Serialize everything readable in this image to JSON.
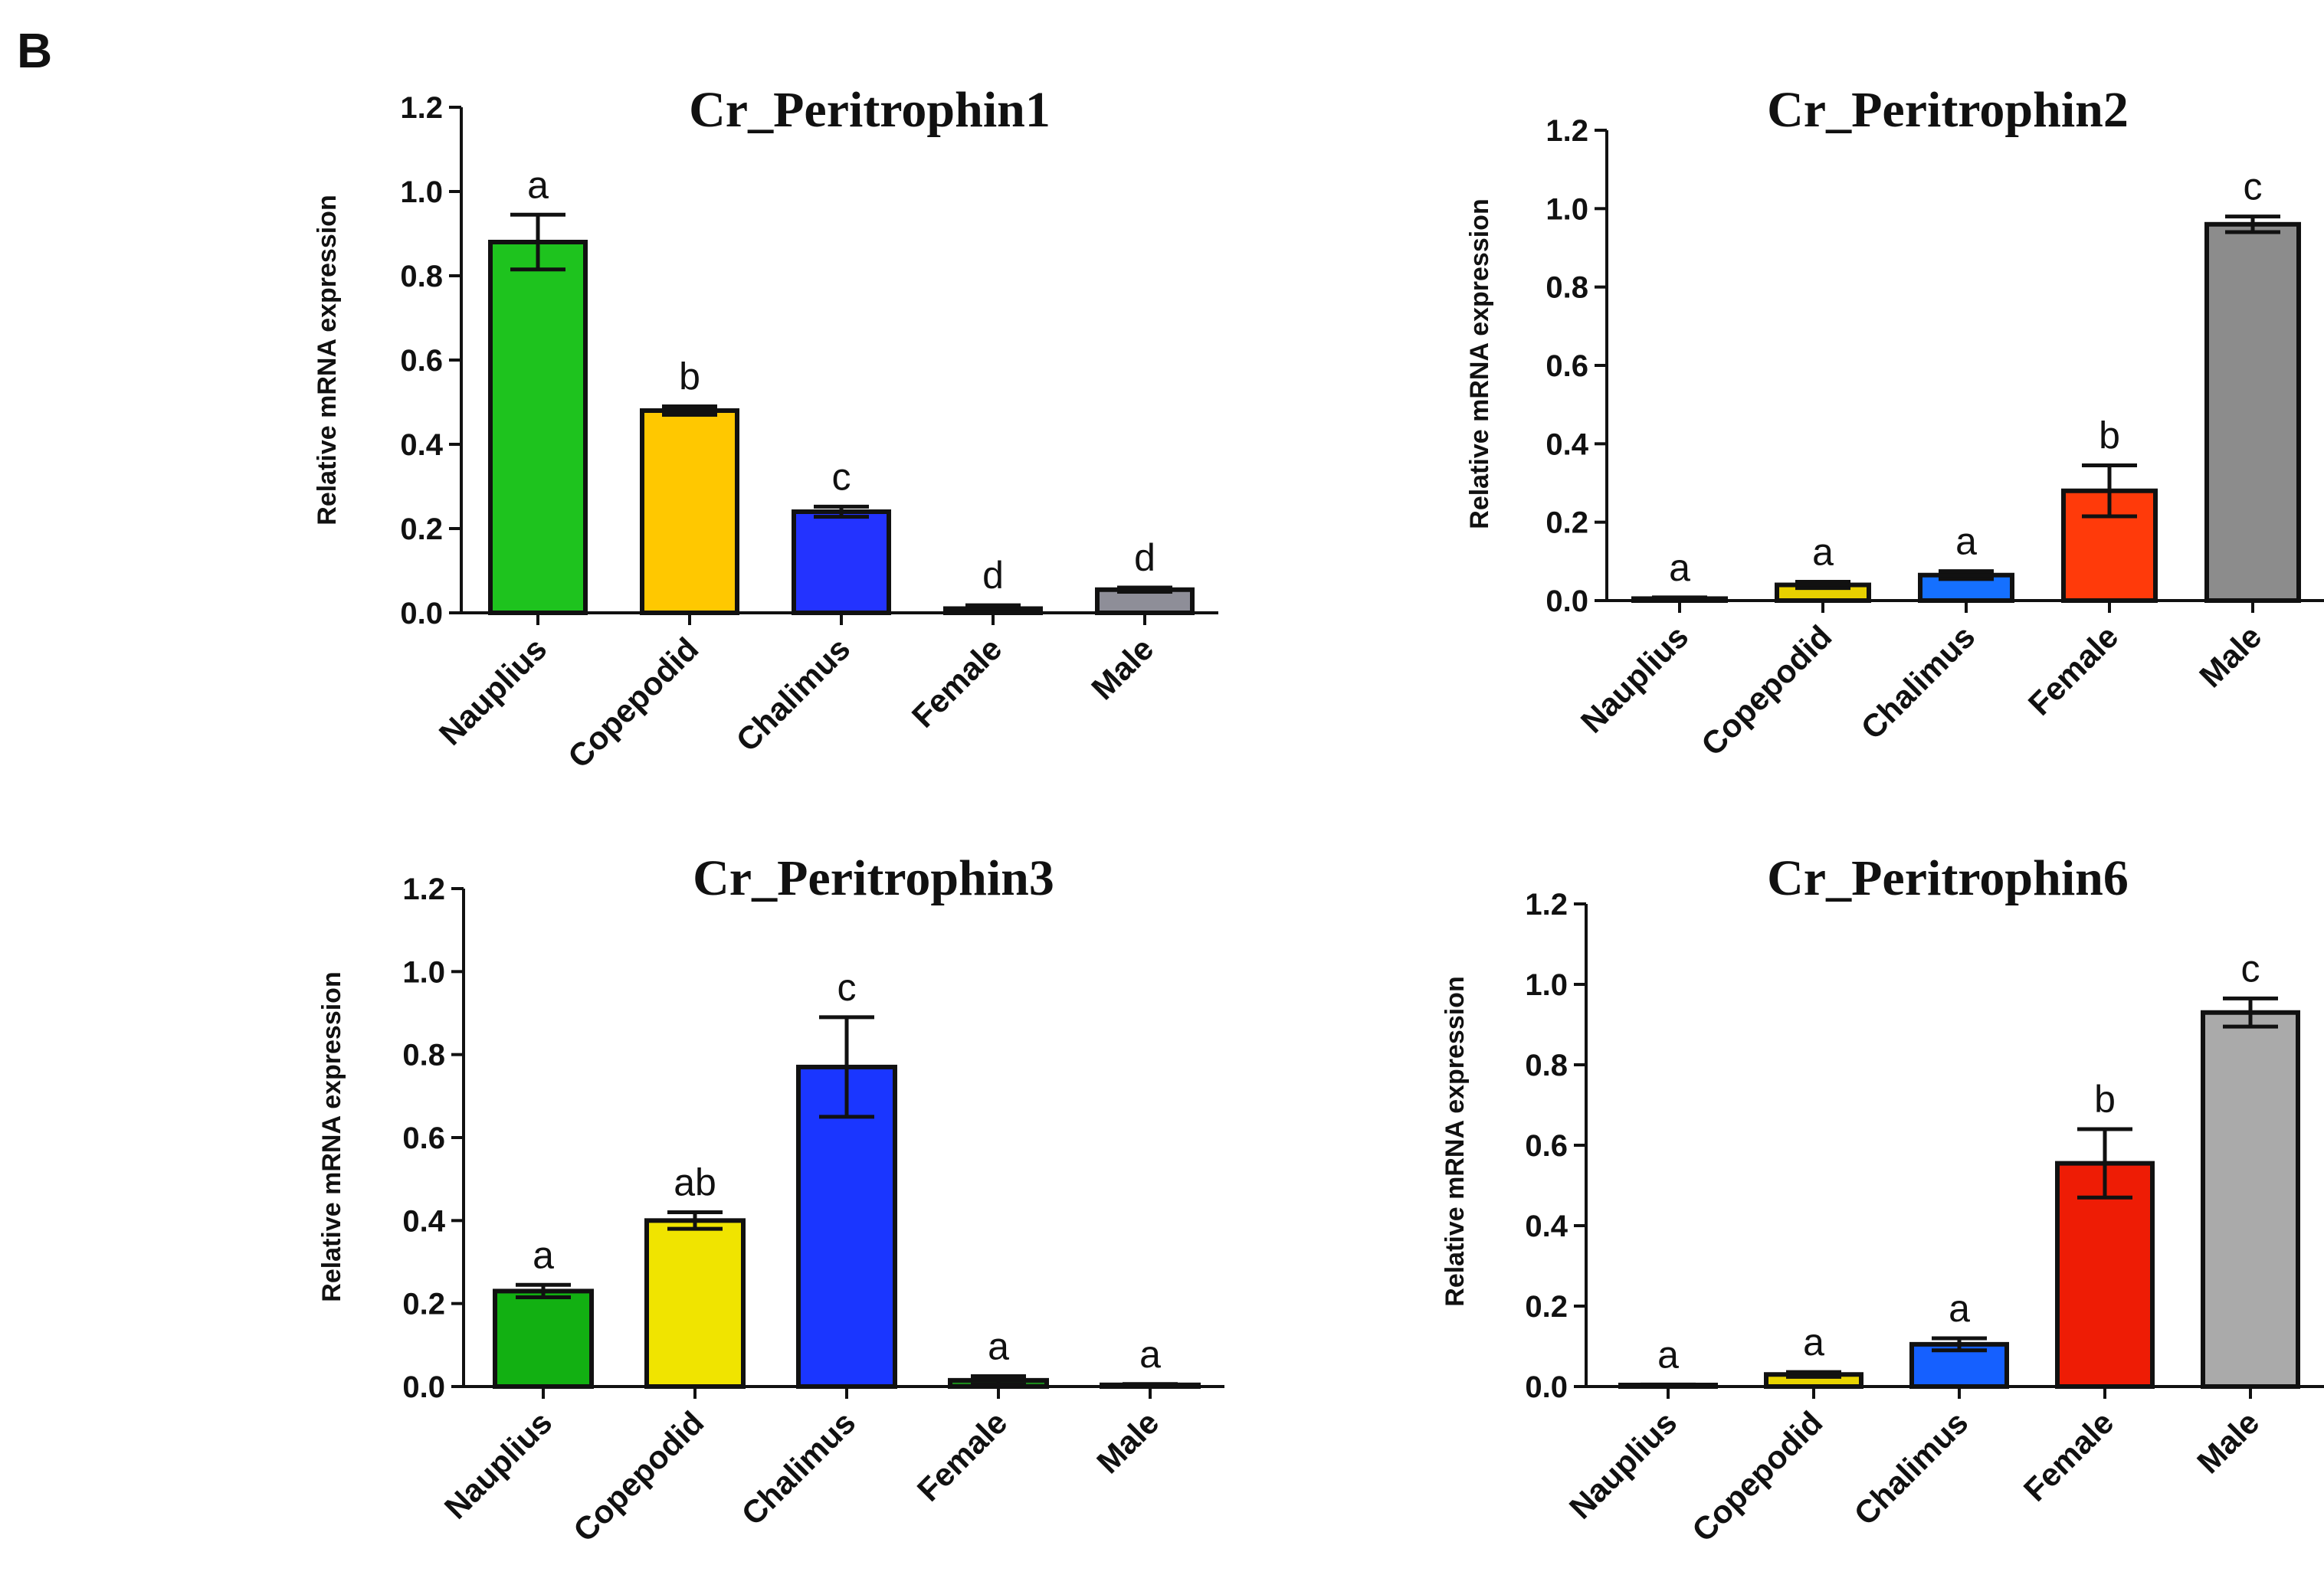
{
  "panel_label": "B",
  "chart_data": [
    {
      "type": "bar",
      "title": "Cr_Peritrophin1",
      "ylabel": "Relative mRNA expression",
      "xlabel": "",
      "ylim": [
        0,
        1.2
      ],
      "yticks": [
        "0.0",
        "0.2",
        "0.4",
        "0.6",
        "0.8",
        "1.0",
        "1.2"
      ],
      "categories": [
        "Nauplius",
        "Copepodid",
        "Chalimus",
        "Female",
        "Male"
      ],
      "values": [
        0.88,
        0.48,
        0.24,
        0.01,
        0.055
      ],
      "errors": [
        0.065,
        0.01,
        0.012,
        0.008,
        0.005
      ],
      "significance": [
        "a",
        "b",
        "c",
        "d",
        "d"
      ],
      "colors": [
        "#1ec31e",
        "#ffc800",
        "#2333ff",
        "#2b2b2b",
        "#8e8e98"
      ]
    },
    {
      "type": "bar",
      "title": "Cr_Peritrophin2",
      "ylabel": "Relative mRNA expression",
      "xlabel": "",
      "ylim": [
        0,
        1.2
      ],
      "yticks": [
        "0.0",
        "0.2",
        "0.4",
        "0.6",
        "0.8",
        "1.0",
        "1.2"
      ],
      "categories": [
        "Nauplius",
        "Copepodid",
        "Chalimus",
        "Female",
        "Male"
      ],
      "values": [
        0.005,
        0.04,
        0.065,
        0.28,
        0.96
      ],
      "errors": [
        0.003,
        0.008,
        0.01,
        0.065,
        0.02
      ],
      "significance": [
        "a",
        "a",
        "a",
        "b",
        "c"
      ],
      "colors": [
        "#1a1a1a",
        "#e8d000",
        "#1570ff",
        "#ff3a0a",
        "#8c8c8c"
      ]
    },
    {
      "type": "bar",
      "title": "Cr_Peritrophin3",
      "ylabel": "Relative mRNA expression",
      "xlabel": "",
      "ylim": [
        0,
        1.2
      ],
      "yticks": [
        "0.0",
        "0.2",
        "0.4",
        "0.6",
        "0.8",
        "1.0",
        "1.2"
      ],
      "categories": [
        "Nauplius",
        "Copepodid",
        "Chalimus",
        "Female",
        "Male"
      ],
      "values": [
        0.23,
        0.4,
        0.77,
        0.015,
        0.004
      ],
      "errors": [
        0.015,
        0.02,
        0.12,
        0.01,
        0.002
      ],
      "significance": [
        "a",
        "ab",
        "c",
        "a",
        "a"
      ],
      "colors": [
        "#12b012",
        "#f0e400",
        "#1a36ff",
        "#1c8a1c",
        "#333333"
      ]
    },
    {
      "type": "bar",
      "title": "Cr_Peritrophin6",
      "ylabel": "Relative mRNA expression",
      "xlabel": "",
      "ylim": [
        0,
        1.2
      ],
      "yticks": [
        "0.0",
        "0.2",
        "0.4",
        "0.6",
        "0.8",
        "1.0",
        "1.2"
      ],
      "categories": [
        "Nauplius",
        "Copepodid",
        "Chalimus",
        "Female",
        "Male"
      ],
      "values": [
        0.003,
        0.03,
        0.105,
        0.555,
        0.93
      ],
      "errors": [
        0.002,
        0.006,
        0.015,
        0.085,
        0.035
      ],
      "significance": [
        "a",
        "a",
        "a",
        "b",
        "c"
      ],
      "colors": [
        "#1a1a1a",
        "#e8d400",
        "#1560ff",
        "#ee1c05",
        "#aaaaaa"
      ]
    }
  ]
}
